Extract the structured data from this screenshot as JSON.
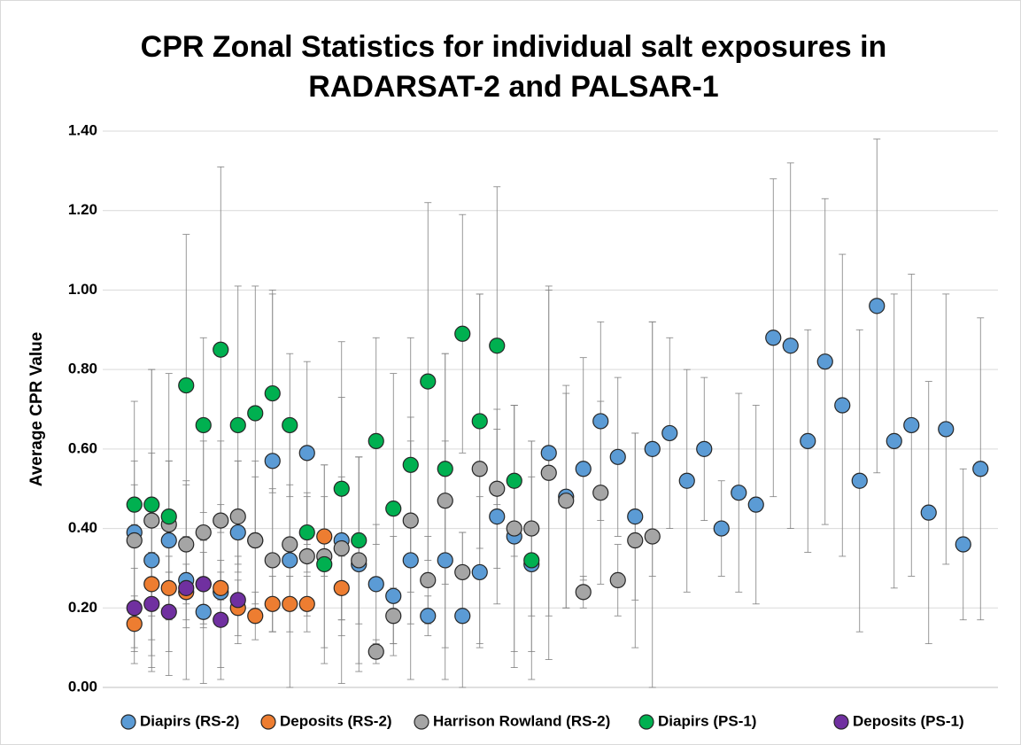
{
  "chart_data": {
    "type": "scatter",
    "title": [
      "CPR Zonal Statistics for individual salt exposures in",
      "RADARSAT-2 and PALSAR-1"
    ],
    "ylabel": "Average CPR Value",
    "x": [
      1,
      2,
      3,
      4,
      5,
      6,
      7,
      8,
      9,
      10,
      11,
      12,
      13,
      14,
      15,
      16,
      17,
      18,
      19,
      20,
      21,
      22,
      23,
      24,
      25,
      26,
      27,
      28,
      29,
      30,
      31,
      32,
      33,
      34,
      35,
      36,
      37,
      38,
      39,
      40,
      41,
      42,
      43,
      44,
      45,
      46,
      47,
      48,
      49,
      50
    ],
    "xlim": [
      0.5,
      50.5
    ],
    "ylim": [
      0,
      1.4
    ],
    "yticks": [
      {
        "value": 0,
        "label": "0.00"
      },
      {
        "value": 0.2,
        "label": "0.20"
      },
      {
        "value": 0.4,
        "label": "0.40"
      },
      {
        "value": 0.6,
        "label": "0.60"
      },
      {
        "value": 0.8,
        "label": "0.80"
      },
      {
        "value": 1.0,
        "label": "1.00"
      },
      {
        "value": 1.2,
        "label": "1.20"
      },
      {
        "value": 1.4,
        "label": "1.40"
      }
    ],
    "grid": true,
    "legend": "bottom",
    "series": [
      {
        "name": "Diapirs (RS-2)",
        "color": "#5b9bd5",
        "values": [
          0.39,
          0.32,
          0.37,
          0.27,
          0.19,
          0.24,
          0.39,
          0.37,
          0.57,
          0.32,
          0.59,
          null,
          0.37,
          0.31,
          0.26,
          0.23,
          0.32,
          0.18,
          0.32,
          0.18,
          0.29,
          0.43,
          0.38,
          0.31,
          0.59,
          0.48,
          0.55,
          0.67,
          0.58,
          0.43,
          0.6,
          0.64,
          0.52,
          0.6,
          0.4,
          0.49,
          0.46,
          0.88,
          0.86,
          0.62,
          0.82,
          0.71,
          0.52,
          0.96,
          0.62,
          0.66,
          0.44,
          0.65,
          0.36,
          0.55
        ],
        "errors": [
          0.33,
          0.27,
          0.2,
          0.25,
          0.18,
          0.22,
          0.18,
          0.2,
          0.43,
          0.35,
          0.23,
          null,
          0.36,
          0.27,
          0.15,
          0.15,
          0.3,
          0.05,
          0.3,
          0.21,
          0.19,
          0.22,
          0.33,
          0.22,
          0.41,
          0.28,
          0.28,
          0.25,
          0.2,
          0.21,
          0.32,
          0.24,
          0.28,
          0.18,
          0.12,
          0.25,
          0.25,
          0.4,
          0.46,
          0.28,
          0.41,
          0.38,
          0.38,
          0.42,
          0.37,
          0.38,
          0.33,
          0.34,
          0.19,
          0.38
        ]
      },
      {
        "name": "Deposits (RS-2)",
        "color": "#ed7d31",
        "values": [
          0.16,
          0.26,
          0.25,
          0.24,
          0.26,
          0.25,
          0.2,
          0.18,
          0.21,
          0.21,
          0.21,
          0.38,
          0.25,
          null,
          null,
          null,
          null,
          null,
          null,
          null,
          null,
          null,
          null,
          null,
          null,
          null,
          null,
          null,
          null,
          null,
          null,
          null,
          null,
          null,
          null,
          null,
          null,
          null,
          null,
          null,
          null,
          null,
          null,
          null,
          null,
          null,
          null,
          null,
          null,
          null
        ],
        "errors": [
          0.07,
          0.08,
          0.08,
          0.07,
          0.08,
          0.07,
          0.07,
          0.06,
          0.07,
          0.07,
          0.07,
          0.1,
          0.08,
          null,
          null,
          null,
          null,
          null,
          null,
          null,
          null,
          null,
          null,
          null,
          null,
          null,
          null,
          null,
          null,
          null,
          null,
          null,
          null,
          null,
          null,
          null,
          null,
          null,
          null,
          null,
          null,
          null,
          null,
          null,
          null,
          null,
          null,
          null,
          null,
          null
        ]
      },
      {
        "name": "Harrison Rowland (RS-2)",
        "color": "#a5a5a5",
        "values": [
          0.37,
          0.42,
          0.41,
          0.36,
          0.39,
          0.42,
          0.43,
          0.37,
          0.32,
          0.36,
          0.33,
          0.33,
          0.35,
          0.32,
          0.09,
          0.18,
          0.42,
          0.27,
          0.47,
          0.29,
          0.55,
          0.5,
          0.4,
          0.4,
          0.54,
          0.47,
          0.24,
          0.49,
          0.27,
          0.37,
          0.38,
          null,
          null,
          null,
          null,
          null,
          null,
          null,
          null,
          null,
          null,
          null,
          null,
          null,
          null,
          null,
          null,
          null,
          null,
          null
        ],
        "errors": [
          0.2,
          0.38,
          0.38,
          0.15,
          0.23,
          0.2,
          0.14,
          0.16,
          0.18,
          0.15,
          0.15,
          0.23,
          0.18,
          0.26,
          0.03,
          0.07,
          0.26,
          0.11,
          0.37,
          0.1,
          0.44,
          0.2,
          0.31,
          0.22,
          0.47,
          0.27,
          0.04,
          0.23,
          0.09,
          0.27,
          0.54,
          null,
          null,
          null,
          null,
          null,
          null,
          null,
          null,
          null,
          null,
          null,
          null,
          null,
          null,
          null,
          null,
          null,
          null,
          null
        ]
      },
      {
        "name": "Diapirs (PS-1)",
        "color": "#00b050",
        "values": [
          0.46,
          0.46,
          0.43,
          0.76,
          0.66,
          0.85,
          0.66,
          0.69,
          0.74,
          0.66,
          0.39,
          0.31,
          0.5,
          0.37,
          0.62,
          0.45,
          0.56,
          0.77,
          0.55,
          0.89,
          0.67,
          0.86,
          0.52,
          0.32,
          null,
          null,
          null,
          null,
          null,
          null,
          null,
          null,
          null,
          null,
          null,
          null,
          null,
          null,
          null,
          null,
          null,
          null,
          null,
          null,
          null,
          null,
          null,
          null,
          null,
          null
        ],
        "errors": [
          0.05,
          0.34,
          0.14,
          0.38,
          0.22,
          0.46,
          0.35,
          0.32,
          0.25,
          0.18,
          0.1,
          0.25,
          0.37,
          0.21,
          0.26,
          0.34,
          0.32,
          0.45,
          0.29,
          0.3,
          0.32,
          0.4,
          0.19,
          0.3,
          null,
          null,
          null,
          null,
          null,
          null,
          null,
          null,
          null,
          null,
          null,
          null,
          null,
          null,
          null,
          null,
          null,
          null,
          null,
          null,
          null,
          null,
          null,
          null,
          null,
          null
        ]
      },
      {
        "name": "Deposits (PS-1)",
        "color": "#7030a0",
        "values": [
          0.2,
          0.21,
          0.19,
          0.25,
          0.26,
          0.17,
          0.22,
          null,
          null,
          null,
          null,
          null,
          null,
          null,
          null,
          null,
          null,
          null,
          null,
          null,
          null,
          null,
          null,
          null,
          null,
          null,
          null,
          null,
          null,
          null,
          null,
          null,
          null,
          null,
          null,
          null,
          null,
          null,
          null,
          null,
          null,
          null,
          null,
          null,
          null,
          null,
          null,
          null,
          null,
          null
        ],
        "errors": [
          0.1,
          0.13,
          0.1,
          0.1,
          0.11,
          0.12,
          0.11,
          null,
          null,
          null,
          null,
          null,
          null,
          null,
          null,
          null,
          null,
          null,
          null,
          null,
          null,
          null,
          null,
          null,
          null,
          null,
          null,
          null,
          null,
          null,
          null,
          null,
          null,
          null,
          null,
          null,
          null,
          null,
          null,
          null,
          null,
          null,
          null,
          null,
          null,
          null,
          null,
          null,
          null,
          null
        ]
      }
    ]
  }
}
